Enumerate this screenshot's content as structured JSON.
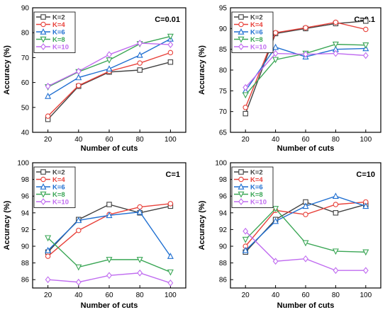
{
  "chart_data": [
    {
      "type": "line",
      "annotation": "C=0.01",
      "xlabel": "Number of cuts",
      "ylabel": "Accuracy (%)",
      "x": [
        20,
        40,
        60,
        80,
        100
      ],
      "xlim": [
        10,
        110
      ],
      "ylim": [
        40,
        90
      ],
      "yticks": [
        40,
        50,
        60,
        70,
        80,
        90
      ],
      "legend_position": "top-left",
      "series": [
        {
          "name": "K=2",
          "color": "#404040",
          "marker": "square",
          "values": [
            45.2,
            58.5,
            64.2,
            65.0,
            68.2
          ]
        },
        {
          "name": "K=4",
          "color": "#e8413a",
          "marker": "circle",
          "values": [
            46.5,
            58.8,
            64.5,
            67.8,
            72.0
          ]
        },
        {
          "name": "K=6",
          "color": "#1f6fd1",
          "marker": "triangle",
          "values": [
            54.5,
            62.0,
            65.5,
            71.0,
            77.5
          ]
        },
        {
          "name": "K=8",
          "color": "#3aa655",
          "marker": "triangle-down",
          "values": [
            58.2,
            64.3,
            69.0,
            75.5,
            78.5
          ]
        },
        {
          "name": "K=10",
          "color": "#c06cf0",
          "marker": "diamond",
          "values": [
            58.5,
            64.5,
            71.2,
            75.8,
            75.2
          ]
        }
      ]
    },
    {
      "type": "line",
      "annotation": "C=0.1",
      "xlabel": "Number of cuts",
      "ylabel": "Accuracy (%)",
      "x": [
        20,
        40,
        60,
        80,
        100
      ],
      "xlim": [
        10,
        110
      ],
      "ylim": [
        65,
        95
      ],
      "yticks": [
        65,
        70,
        75,
        80,
        85,
        90,
        95
      ],
      "legend_position": "top-left",
      "series": [
        {
          "name": "K=2",
          "color": "#404040",
          "marker": "square",
          "values": [
            69.5,
            88.8,
            90.0,
            91.2,
            91.8
          ]
        },
        {
          "name": "K=4",
          "color": "#e8413a",
          "marker": "circle",
          "values": [
            71.0,
            89.0,
            90.2,
            91.5,
            89.8
          ]
        },
        {
          "name": "K=6",
          "color": "#1f6fd1",
          "marker": "triangle",
          "values": [
            75.0,
            85.5,
            83.2,
            85.0,
            85.2
          ]
        },
        {
          "name": "K=8",
          "color": "#3aa655",
          "marker": "triangle-down",
          "values": [
            74.0,
            82.5,
            84.0,
            86.2,
            86.0
          ]
        },
        {
          "name": "K=10",
          "color": "#c06cf0",
          "marker": "diamond",
          "values": [
            75.8,
            84.0,
            83.8,
            84.0,
            83.5
          ]
        }
      ]
    },
    {
      "type": "line",
      "annotation": "C=1",
      "xlabel": "Number of cuts",
      "ylabel": "Accuracy (%)",
      "x": [
        20,
        40,
        60,
        80,
        100
      ],
      "xlim": [
        10,
        110
      ],
      "ylim": [
        85,
        100
      ],
      "yticks": [
        86,
        88,
        90,
        92,
        94,
        96,
        98,
        100
      ],
      "legend_position": "top-left",
      "series": [
        {
          "name": "K=2",
          "color": "#404040",
          "marker": "square",
          "values": [
            89.3,
            93.2,
            95.0,
            94.0,
            94.8
          ]
        },
        {
          "name": "K=4",
          "color": "#e8413a",
          "marker": "circle",
          "values": [
            88.8,
            91.9,
            93.8,
            94.7,
            95.1
          ]
        },
        {
          "name": "K=6",
          "color": "#1f6fd1",
          "marker": "triangle",
          "values": [
            89.5,
            93.1,
            93.7,
            94.1,
            88.8
          ]
        },
        {
          "name": "K=8",
          "color": "#3aa655",
          "marker": "triangle-down",
          "values": [
            91.0,
            87.5,
            88.4,
            88.4,
            86.9
          ]
        },
        {
          "name": "K=10",
          "color": "#c06cf0",
          "marker": "diamond",
          "values": [
            86.0,
            85.7,
            86.5,
            86.8,
            85.6
          ]
        }
      ]
    },
    {
      "type": "line",
      "annotation": "C=10",
      "xlabel": "Number of cuts",
      "ylabel": "Accuracy (%)",
      "x": [
        20,
        40,
        60,
        80,
        100
      ],
      "xlim": [
        10,
        110
      ],
      "ylim": [
        85,
        100
      ],
      "yticks": [
        86,
        88,
        90,
        92,
        94,
        96,
        98,
        100
      ],
      "legend_position": "top-left",
      "series": [
        {
          "name": "K=2",
          "color": "#404040",
          "marker": "square",
          "values": [
            89.3,
            93.2,
            95.3,
            94.0,
            95.0
          ]
        },
        {
          "name": "K=4",
          "color": "#e8413a",
          "marker": "circle",
          "values": [
            90.0,
            94.3,
            93.8,
            95.0,
            95.3
          ]
        },
        {
          "name": "K=6",
          "color": "#1f6fd1",
          "marker": "triangle",
          "values": [
            89.5,
            93.0,
            94.8,
            96.0,
            94.8
          ]
        },
        {
          "name": "K=8",
          "color": "#3aa655",
          "marker": "triangle-down",
          "values": [
            90.8,
            94.5,
            90.4,
            89.4,
            89.3
          ]
        },
        {
          "name": "K=10",
          "color": "#c06cf0",
          "marker": "diamond",
          "values": [
            91.8,
            88.2,
            88.5,
            87.1,
            87.1
          ]
        }
      ]
    }
  ]
}
